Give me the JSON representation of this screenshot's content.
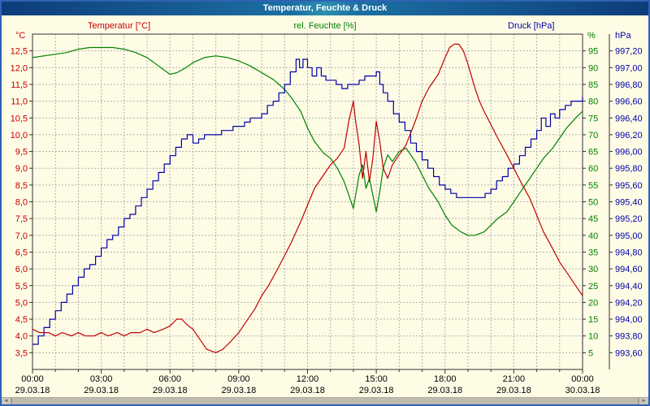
{
  "window": {
    "title": "Temperatur, Feuchte & Druck"
  },
  "colors": {
    "temperature": "#c00000",
    "humidity": "#008000",
    "pressure": "#0000a8",
    "grid": "#b0b0b0",
    "axis": "#303030",
    "text": "#000000",
    "background": "#fffce6",
    "border": "#2f62b5"
  },
  "scrollbar": {
    "left_arrow": "◄",
    "right_arrow": "►"
  },
  "chart_data": {
    "type": "line",
    "title": "Temperatur, Feuchte & Druck",
    "grid": "on",
    "x_axis": {
      "hours_span": 24,
      "label_every_hours": 3,
      "tick_labels": [
        "00:00",
        "03:00",
        "06:00",
        "09:00",
        "12:00",
        "15:00",
        "18:00",
        "21:00",
        "00:00"
      ],
      "date_labels": [
        "29.03.18",
        "29.03.18",
        "29.03.18",
        "29.03.18",
        "29.03.18",
        "29.03.18",
        "29.03.18",
        "29.03.18",
        "30.03.18"
      ]
    },
    "axes": {
      "temperature": {
        "title": "Temperatur [°C]",
        "unit_label": "°C",
        "color": "#c00000",
        "top": 12.5,
        "step": 0.5,
        "min": 3.5,
        "max": 12.5,
        "tick_labels": [
          "12,5",
          "12,0",
          "11,5",
          "11,0",
          "10,5",
          "10,0",
          "9,5",
          "9,0",
          "8,5",
          "8,0",
          "7,5",
          "7,0",
          "6,5",
          "6,0",
          "5,5",
          "5,0",
          "4,5",
          "4,0",
          "3,5"
        ]
      },
      "humidity": {
        "title": "rel. Feuchte [%]",
        "unit_label": "%",
        "color": "#008000",
        "top": 95,
        "step": 5,
        "min": 5,
        "max": 95,
        "tick_labels": [
          "95",
          "90",
          "85",
          "80",
          "75",
          "70",
          "65",
          "60",
          "55",
          "50",
          "45",
          "40",
          "35",
          "30",
          "25",
          "20",
          "15",
          "10",
          "5"
        ]
      },
      "pressure": {
        "title": "Druck [hPa]",
        "unit_label": "hPa",
        "color": "#0000a8",
        "top": 997.2,
        "step": 0.2,
        "min": 993.6,
        "max": 997.2,
        "tick_labels": [
          "997,20",
          "997,00",
          "996,80",
          "996,60",
          "996,40",
          "996,20",
          "996,00",
          "995,80",
          "995,60",
          "995,40",
          "995,20",
          "995,00",
          "994,80",
          "994,60",
          "994,40",
          "994,20",
          "994,00",
          "993,80",
          "993,60"
        ]
      }
    },
    "series": [
      {
        "name": "Temperatur",
        "axis": "temperature",
        "color": "#c00000",
        "render": "line",
        "points": [
          [
            0,
            4.2
          ],
          [
            0.3,
            4.1
          ],
          [
            0.7,
            4.1
          ],
          [
            1,
            4.0
          ],
          [
            1.3,
            4.1
          ],
          [
            1.7,
            4.0
          ],
          [
            2,
            4.1
          ],
          [
            2.3,
            4.0
          ],
          [
            2.7,
            4.0
          ],
          [
            3,
            4.1
          ],
          [
            3.3,
            4.0
          ],
          [
            3.7,
            4.1
          ],
          [
            4,
            4.0
          ],
          [
            4.3,
            4.1
          ],
          [
            4.7,
            4.1
          ],
          [
            5,
            4.2
          ],
          [
            5.3,
            4.1
          ],
          [
            5.7,
            4.2
          ],
          [
            6,
            4.3
          ],
          [
            6.3,
            4.5
          ],
          [
            6.5,
            4.5
          ],
          [
            6.8,
            4.3
          ],
          [
            7,
            4.2
          ],
          [
            7.3,
            3.9
          ],
          [
            7.6,
            3.6
          ],
          [
            8,
            3.5
          ],
          [
            8.3,
            3.6
          ],
          [
            8.6,
            3.8
          ],
          [
            9,
            4.1
          ],
          [
            9.3,
            4.4
          ],
          [
            9.7,
            4.8
          ],
          [
            10,
            5.2
          ],
          [
            10.3,
            5.5
          ],
          [
            10.7,
            6.0
          ],
          [
            11,
            6.4
          ],
          [
            11.3,
            6.8
          ],
          [
            11.7,
            7.4
          ],
          [
            12,
            7.9
          ],
          [
            12.3,
            8.4
          ],
          [
            12.7,
            8.8
          ],
          [
            13,
            9.1
          ],
          [
            13.3,
            9.3
          ],
          [
            13.6,
            9.6
          ],
          [
            13.8,
            10.4
          ],
          [
            14,
            11.0
          ],
          [
            14.1,
            10.4
          ],
          [
            14.25,
            9.7
          ],
          [
            14.4,
            8.7
          ],
          [
            14.55,
            9.5
          ],
          [
            14.7,
            8.6
          ],
          [
            14.85,
            9.3
          ],
          [
            15,
            10.4
          ],
          [
            15.15,
            9.8
          ],
          [
            15.3,
            9.0
          ],
          [
            15.5,
            8.7
          ],
          [
            15.7,
            9.1
          ],
          [
            16,
            9.4
          ],
          [
            16.3,
            9.7
          ],
          [
            16.7,
            10.4
          ],
          [
            17,
            11.0
          ],
          [
            17.3,
            11.4
          ],
          [
            17.7,
            11.8
          ],
          [
            18,
            12.3
          ],
          [
            18.2,
            12.6
          ],
          [
            18.4,
            12.7
          ],
          [
            18.6,
            12.7
          ],
          [
            18.8,
            12.5
          ],
          [
            19,
            12.1
          ],
          [
            19.3,
            11.4
          ],
          [
            19.5,
            11.0
          ],
          [
            19.7,
            10.7
          ],
          [
            20,
            10.3
          ],
          [
            20.3,
            9.9
          ],
          [
            20.7,
            9.4
          ],
          [
            21,
            9.0
          ],
          [
            21.3,
            8.6
          ],
          [
            21.7,
            8.1
          ],
          [
            22,
            7.6
          ],
          [
            22.3,
            7.1
          ],
          [
            22.7,
            6.6
          ],
          [
            23,
            6.2
          ],
          [
            23.3,
            5.9
          ],
          [
            23.7,
            5.5
          ],
          [
            24,
            5.2
          ]
        ]
      },
      {
        "name": "rel. Feuchte",
        "axis": "humidity",
        "color": "#008000",
        "render": "line",
        "points": [
          [
            0,
            93
          ],
          [
            0.5,
            93.5
          ],
          [
            1,
            94
          ],
          [
            1.5,
            94.5
          ],
          [
            2,
            95.5
          ],
          [
            2.5,
            96
          ],
          [
            3,
            96
          ],
          [
            3.5,
            96
          ],
          [
            4,
            95.5
          ],
          [
            4.5,
            94.5
          ],
          [
            5,
            93
          ],
          [
            5.5,
            90.5
          ],
          [
            6,
            88
          ],
          [
            6.3,
            88.5
          ],
          [
            6.7,
            90
          ],
          [
            7,
            91.5
          ],
          [
            7.5,
            93
          ],
          [
            8,
            93.5
          ],
          [
            8.5,
            93
          ],
          [
            9,
            92
          ],
          [
            9.5,
            90.5
          ],
          [
            10,
            88.5
          ],
          [
            10.5,
            86.5
          ],
          [
            11,
            83.5
          ],
          [
            11.3,
            81
          ],
          [
            11.7,
            77
          ],
          [
            12,
            72
          ],
          [
            12.3,
            68
          ],
          [
            12.7,
            64.5
          ],
          [
            13,
            63
          ],
          [
            13.3,
            60
          ],
          [
            13.6,
            56
          ],
          [
            13.8,
            52
          ],
          [
            14,
            48
          ],
          [
            14.1,
            52
          ],
          [
            14.25,
            58
          ],
          [
            14.4,
            61
          ],
          [
            14.55,
            54
          ],
          [
            14.7,
            57
          ],
          [
            14.85,
            52
          ],
          [
            15,
            47
          ],
          [
            15.15,
            53
          ],
          [
            15.3,
            60
          ],
          [
            15.5,
            64
          ],
          [
            15.7,
            62
          ],
          [
            16,
            65
          ],
          [
            16.3,
            66
          ],
          [
            16.7,
            62
          ],
          [
            17,
            58
          ],
          [
            17.3,
            54
          ],
          [
            17.7,
            50
          ],
          [
            18,
            46
          ],
          [
            18.3,
            43
          ],
          [
            18.7,
            41
          ],
          [
            19,
            40
          ],
          [
            19.3,
            40
          ],
          [
            19.7,
            41
          ],
          [
            20,
            43
          ],
          [
            20.3,
            45
          ],
          [
            20.7,
            47
          ],
          [
            21,
            50
          ],
          [
            21.3,
            53
          ],
          [
            21.7,
            57
          ],
          [
            22,
            60
          ],
          [
            22.3,
            63
          ],
          [
            22.7,
            66
          ],
          [
            23,
            69
          ],
          [
            23.3,
            72
          ],
          [
            23.7,
            75
          ],
          [
            24,
            77
          ]
        ]
      },
      {
        "name": "Druck",
        "axis": "pressure",
        "color": "#0000a8",
        "render": "step",
        "points": [
          [
            0,
            993.7
          ],
          [
            0.25,
            993.8
          ],
          [
            0.5,
            993.9
          ],
          [
            0.75,
            994.0
          ],
          [
            1,
            994.1
          ],
          [
            1.25,
            994.2
          ],
          [
            1.5,
            994.3
          ],
          [
            1.75,
            994.4
          ],
          [
            2,
            994.5
          ],
          [
            2.25,
            994.6
          ],
          [
            2.5,
            994.65
          ],
          [
            2.75,
            994.75
          ],
          [
            3,
            994.85
          ],
          [
            3.25,
            994.95
          ],
          [
            3.5,
            995.0
          ],
          [
            3.75,
            995.1
          ],
          [
            4,
            995.2
          ],
          [
            4.25,
            995.25
          ],
          [
            4.5,
            995.35
          ],
          [
            4.75,
            995.45
          ],
          [
            5,
            995.55
          ],
          [
            5.25,
            995.65
          ],
          [
            5.5,
            995.75
          ],
          [
            5.75,
            995.85
          ],
          [
            6,
            995.95
          ],
          [
            6.25,
            996.05
          ],
          [
            6.5,
            996.15
          ],
          [
            6.75,
            996.2
          ],
          [
            7,
            996.1
          ],
          [
            7.25,
            996.15
          ],
          [
            7.5,
            996.2
          ],
          [
            7.75,
            996.2
          ],
          [
            8,
            996.2
          ],
          [
            8.25,
            996.25
          ],
          [
            8.5,
            996.25
          ],
          [
            8.75,
            996.3
          ],
          [
            9,
            996.3
          ],
          [
            9.25,
            996.35
          ],
          [
            9.5,
            996.4
          ],
          [
            9.75,
            996.4
          ],
          [
            10,
            996.45
          ],
          [
            10.25,
            996.55
          ],
          [
            10.5,
            996.6
          ],
          [
            10.75,
            996.7
          ],
          [
            11,
            996.8
          ],
          [
            11.25,
            996.95
          ],
          [
            11.5,
            997.1
          ],
          [
            11.65,
            997.0
          ],
          [
            11.8,
            997.1
          ],
          [
            12,
            997.0
          ],
          [
            12.2,
            996.9
          ],
          [
            12.4,
            997.0
          ],
          [
            12.6,
            996.9
          ],
          [
            12.8,
            996.85
          ],
          [
            13,
            996.85
          ],
          [
            13.25,
            996.8
          ],
          [
            13.5,
            996.75
          ],
          [
            13.75,
            996.8
          ],
          [
            14,
            996.8
          ],
          [
            14.25,
            996.85
          ],
          [
            14.5,
            996.9
          ],
          [
            14.75,
            996.9
          ],
          [
            15,
            996.95
          ],
          [
            15.15,
            996.8
          ],
          [
            15.3,
            996.7
          ],
          [
            15.5,
            996.6
          ],
          [
            15.75,
            996.45
          ],
          [
            16,
            996.35
          ],
          [
            16.25,
            996.25
          ],
          [
            16.5,
            996.1
          ],
          [
            16.75,
            996.0
          ],
          [
            17,
            995.9
          ],
          [
            17.25,
            995.8
          ],
          [
            17.5,
            995.7
          ],
          [
            17.75,
            995.6
          ],
          [
            18,
            995.55
          ],
          [
            18.25,
            995.5
          ],
          [
            18.5,
            995.45
          ],
          [
            18.75,
            995.45
          ],
          [
            19,
            995.45
          ],
          [
            19.25,
            995.45
          ],
          [
            19.5,
            995.45
          ],
          [
            19.75,
            995.5
          ],
          [
            20,
            995.55
          ],
          [
            20.25,
            995.65
          ],
          [
            20.5,
            995.7
          ],
          [
            20.75,
            995.8
          ],
          [
            21,
            995.85
          ],
          [
            21.25,
            995.95
          ],
          [
            21.5,
            996.05
          ],
          [
            21.75,
            996.15
          ],
          [
            22,
            996.25
          ],
          [
            22.2,
            996.4
          ],
          [
            22.4,
            996.3
          ],
          [
            22.6,
            996.45
          ],
          [
            22.8,
            996.4
          ],
          [
            23,
            996.5
          ],
          [
            23.25,
            996.55
          ],
          [
            23.5,
            996.6
          ],
          [
            23.75,
            996.6
          ],
          [
            24,
            996.65
          ]
        ]
      }
    ]
  }
}
